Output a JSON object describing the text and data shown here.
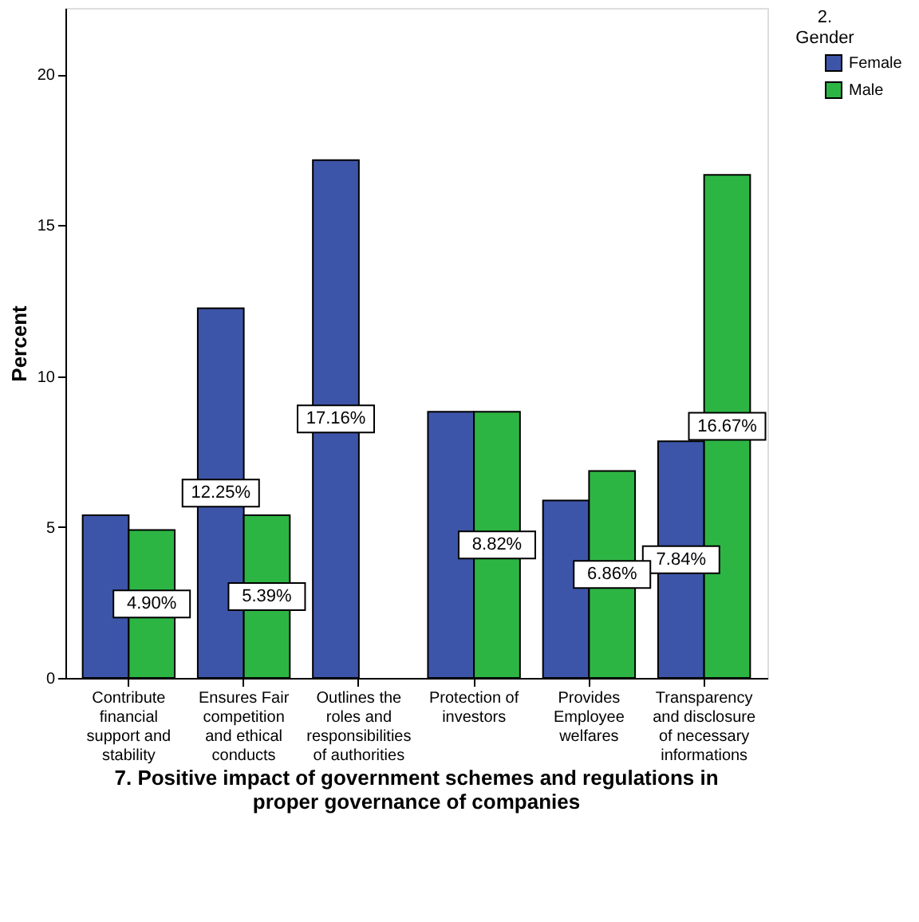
{
  "chart_data": {
    "type": "bar",
    "title": "7. Positive impact of government schemes and regulations in proper governance of companies",
    "ylabel": "Percent",
    "legend_title": "2. Gender",
    "legend": "top right",
    "grid": false,
    "categories": [
      "Contribute financial support and stability",
      "Ensures Fair competition and ethical conducts",
      "Outlines the roles and responsibilities of authorities",
      "Protection of investors",
      "Provides Employee welfares",
      "Transparency and disclosure of necessary informations"
    ],
    "series": [
      {
        "name": "Female",
        "color": "#3d55a8",
        "values": [
          5.39,
          12.25,
          17.16,
          8.82,
          5.88,
          7.84
        ],
        "value_labels": [
          null,
          "12.25%",
          "17.16%",
          null,
          null,
          "7.84%"
        ]
      },
      {
        "name": "Male",
        "color": "#2db544",
        "values": [
          4.9,
          5.39,
          null,
          8.82,
          6.86,
          16.67
        ],
        "value_labels": [
          "4.90%",
          "5.39%",
          null,
          "8.82%",
          "6.86%",
          "16.67%"
        ]
      }
    ],
    "ylim": [
      0,
      22.2
    ],
    "yticks": [
      0,
      5,
      10,
      15,
      20
    ]
  }
}
